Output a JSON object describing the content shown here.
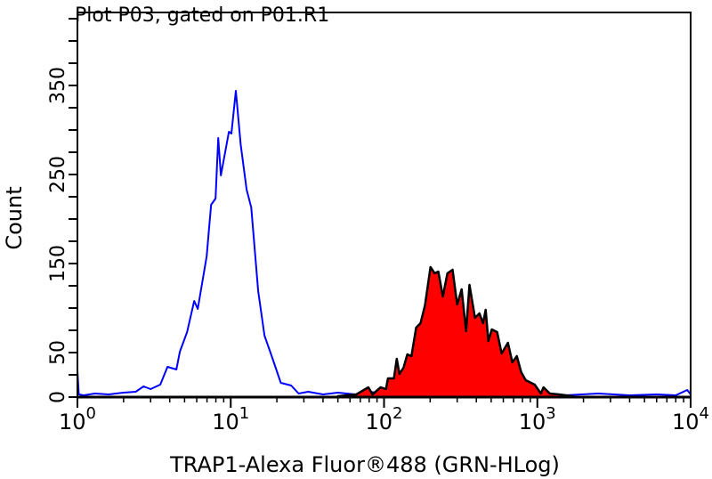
{
  "chart_data": {
    "type": "area",
    "title": "Plot P03, gated on P01.R1",
    "xlabel": "TRAP1-Alexa Fluor®488 (GRN-HLog)",
    "ylabel": "Count",
    "x_scale": "log",
    "xlim": [
      1,
      10000
    ],
    "ylim": [
      0,
      432
    ],
    "x_ticks": [
      {
        "value": 1,
        "base": "10",
        "exp": "0"
      },
      {
        "value": 10,
        "base": "10",
        "exp": "1"
      },
      {
        "value": 100,
        "base": "10",
        "exp": "2"
      },
      {
        "value": 1000,
        "base": "10",
        "exp": "3"
      },
      {
        "value": 10000,
        "base": "10",
        "exp": "4"
      }
    ],
    "y_tick_labels": [
      "0",
      "50",
      "150",
      "250",
      "350"
    ],
    "y_minor_step": 25,
    "grid": false,
    "series": [
      {
        "style": "line",
        "color": "#0000ff",
        "x": [
          1,
          1.02,
          1.1,
          1.3,
          1.6,
          2.0,
          2.4,
          2.7,
          3.0,
          3.47,
          3.87,
          4.42,
          4.66,
          5.19,
          5.78,
          6.09,
          6.97,
          7.45,
          7.96,
          8.29,
          8.63,
          9.73,
          10.1,
          10.8,
          11.6,
          12.7,
          13.6,
          15.1,
          16.6,
          18.5,
          21.2,
          24.8,
          27.7,
          32,
          40,
          50,
          65,
          80,
          100,
          150,
          250,
          400,
          700,
          1000,
          1500,
          2500,
          4000,
          6000,
          8000,
          9500,
          10000
        ],
        "y": [
          30,
          3,
          2,
          4,
          3,
          5,
          6,
          12,
          9,
          14,
          34,
          31,
          51,
          73,
          108,
          99,
          158,
          216,
          223,
          291,
          249,
          298,
          296,
          344,
          284,
          233,
          213,
          119,
          69,
          46,
          16,
          13,
          4,
          6,
          3,
          5,
          3,
          6,
          4,
          3,
          2,
          3,
          2,
          3,
          2,
          4,
          2,
          3,
          2,
          8,
          3
        ]
      },
      {
        "style": "filled",
        "color": "#ff0000",
        "stroke": "#000000",
        "x": [
          50,
          66,
          79,
          84,
          95,
          103,
          106,
          116,
          121,
          126,
          134,
          142,
          151,
          162,
          173,
          185,
          201,
          214,
          226,
          242,
          259,
          280,
          300,
          321,
          343,
          361,
          392,
          419,
          442,
          460,
          479,
          505,
          547,
          585,
          643,
          687,
          735,
          785,
          840,
          961,
          1054,
          1098,
          1205,
          1380,
          1700
        ],
        "y": [
          1,
          3,
          11,
          3,
          11,
          9,
          21,
          21,
          43,
          26,
          33,
          48,
          46,
          78,
          83,
          103,
          146,
          139,
          141,
          113,
          139,
          143,
          104,
          121,
          74,
          126,
          89,
          94,
          83,
          98,
          63,
          76,
          73,
          49,
          61,
          39,
          46,
          28,
          19,
          14,
          4,
          11,
          4,
          3,
          1
        ]
      }
    ]
  }
}
